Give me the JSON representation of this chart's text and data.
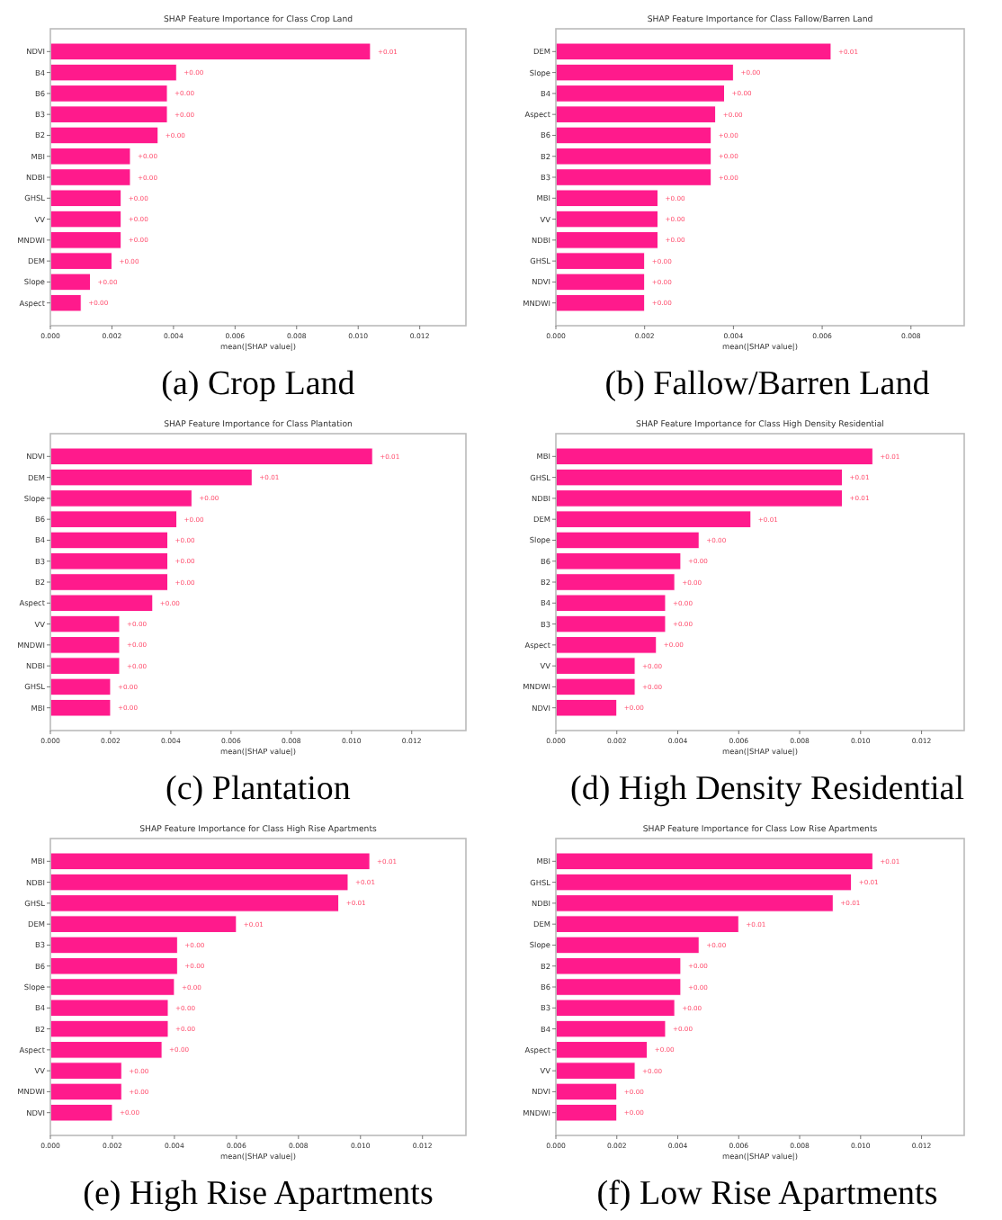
{
  "chart_data": [
    {
      "type": "bar",
      "orientation": "horizontal",
      "title": "SHAP Feature Importance for Class Crop Land",
      "xlabel": "mean(|SHAP value|)",
      "categories": [
        "NDVI",
        "B4",
        "B6",
        "B3",
        "B2",
        "MBI",
        "NDBI",
        "GHSL",
        "VV",
        "MNDWI",
        "DEM",
        "Slope",
        "Aspect"
      ],
      "values": [
        0.0104,
        0.0041,
        0.0038,
        0.0038,
        0.0035,
        0.0026,
        0.0026,
        0.0023,
        0.0023,
        0.0023,
        0.002,
        0.0013,
        0.001
      ],
      "value_labels": [
        "+0.01",
        "+0.00",
        "+0.00",
        "+0.00",
        "+0.00",
        "+0.00",
        "+0.00",
        "+0.00",
        "+0.00",
        "+0.00",
        "+0.00",
        "+0.00",
        "+0.00"
      ],
      "color": "#ff1a8c",
      "xlim": [
        0,
        0.0135
      ],
      "xticks": [
        {
          "value": 0,
          "label": "0.000"
        },
        {
          "value": 0.002,
          "label": "0.002"
        },
        {
          "value": 0.004,
          "label": "0.004"
        },
        {
          "value": 0.006,
          "label": "0.006"
        },
        {
          "value": 0.008,
          "label": "0.008"
        },
        {
          "value": 0.01,
          "label": "0.010"
        },
        {
          "value": 0.012,
          "label": "0.012"
        }
      ],
      "annotations": [
        "(a) Crop Land"
      ]
    },
    {
      "type": "bar",
      "orientation": "horizontal",
      "title": "SHAP Feature Importance for Class Fallow/Barren Land",
      "xlabel": "mean(|SHAP value|)",
      "categories": [
        "DEM",
        "Slope",
        "B4",
        "Aspect",
        "B6",
        "B2",
        "B3",
        "MBI",
        "VV",
        "NDBI",
        "GHSL",
        "NDVI",
        "MNDWI"
      ],
      "values": [
        0.0062,
        0.004,
        0.0038,
        0.0036,
        0.0035,
        0.0035,
        0.0035,
        0.0023,
        0.0023,
        0.0023,
        0.002,
        0.002,
        0.002
      ],
      "value_labels": [
        "+0.01",
        "+0.00",
        "+0.00",
        "+0.00",
        "+0.00",
        "+0.00",
        "+0.00",
        "+0.00",
        "+0.00",
        "+0.00",
        "+0.00",
        "+0.00",
        "+0.00"
      ],
      "color": "#ff1a8c",
      "xlim": [
        0,
        0.0092
      ],
      "xticks": [
        {
          "value": 0,
          "label": "0.000"
        },
        {
          "value": 0.002,
          "label": "0.002"
        },
        {
          "value": 0.004,
          "label": "0.004"
        },
        {
          "value": 0.006,
          "label": "0.006"
        },
        {
          "value": 0.008,
          "label": "0.008"
        }
      ],
      "annotations": [
        "(b) Fallow/Barren Land"
      ]
    },
    {
      "type": "bar",
      "orientation": "horizontal",
      "title": "SHAP Feature Importance for Class Plantation",
      "xlabel": "mean(|SHAP value|)",
      "categories": [
        "NDVI",
        "DEM",
        "Slope",
        "B6",
        "B4",
        "B3",
        "B2",
        "Aspect",
        "VV",
        "MNDWI",
        "NDBI",
        "GHSL",
        "MBI"
      ],
      "values": [
        0.0107,
        0.0067,
        0.0047,
        0.0042,
        0.0039,
        0.0039,
        0.0039,
        0.0034,
        0.0023,
        0.0023,
        0.0023,
        0.002,
        0.002
      ],
      "value_labels": [
        "+0.01",
        "+0.01",
        "+0.00",
        "+0.00",
        "+0.00",
        "+0.00",
        "+0.00",
        "+0.00",
        "+0.00",
        "+0.00",
        "+0.00",
        "+0.00",
        "+0.00"
      ],
      "color": "#ff1a8c",
      "xlim": [
        0,
        0.0138
      ],
      "xticks": [
        {
          "value": 0,
          "label": "0.000"
        },
        {
          "value": 0.002,
          "label": "0.002"
        },
        {
          "value": 0.004,
          "label": "0.004"
        },
        {
          "value": 0.006,
          "label": "0.006"
        },
        {
          "value": 0.008,
          "label": "0.008"
        },
        {
          "value": 0.01,
          "label": "0.010"
        },
        {
          "value": 0.012,
          "label": "0.012"
        }
      ],
      "annotations": [
        "(c) Plantation"
      ]
    },
    {
      "type": "bar",
      "orientation": "horizontal",
      "title": "SHAP Feature Importance for Class High Density Residential",
      "xlabel": "mean(|SHAP value|)",
      "categories": [
        "MBI",
        "GHSL",
        "NDBI",
        "DEM",
        "Slope",
        "B6",
        "B2",
        "B4",
        "B3",
        "Aspect",
        "VV",
        "MNDWI",
        "NDVI"
      ],
      "values": [
        0.0104,
        0.0094,
        0.0094,
        0.0064,
        0.0047,
        0.0041,
        0.0039,
        0.0036,
        0.0036,
        0.0033,
        0.0026,
        0.0026,
        0.002
      ],
      "value_labels": [
        "+0.01",
        "+0.01",
        "+0.01",
        "+0.01",
        "+0.00",
        "+0.00",
        "+0.00",
        "+0.00",
        "+0.00",
        "+0.00",
        "+0.00",
        "+0.00",
        "+0.00"
      ],
      "color": "#ff1a8c",
      "xlim": [
        0,
        0.0134
      ],
      "xticks": [
        {
          "value": 0,
          "label": "0.000"
        },
        {
          "value": 0.002,
          "label": "0.002"
        },
        {
          "value": 0.004,
          "label": "0.004"
        },
        {
          "value": 0.006,
          "label": "0.006"
        },
        {
          "value": 0.008,
          "label": "0.008"
        },
        {
          "value": 0.01,
          "label": "0.010"
        },
        {
          "value": 0.012,
          "label": "0.012"
        }
      ],
      "annotations": [
        "(d) High Density Residential"
      ]
    },
    {
      "type": "bar",
      "orientation": "horizontal",
      "title": "SHAP Feature Importance for Class High Rise Apartments",
      "xlabel": "mean(|SHAP value|)",
      "categories": [
        "MBI",
        "NDBI",
        "GHSL",
        "DEM",
        "B3",
        "B6",
        "Slope",
        "B4",
        "B2",
        "Aspect",
        "VV",
        "MNDWI",
        "NDVI"
      ],
      "values": [
        0.0103,
        0.0096,
        0.0093,
        0.006,
        0.0041,
        0.0041,
        0.004,
        0.0038,
        0.0038,
        0.0036,
        0.0023,
        0.0023,
        0.002
      ],
      "value_labels": [
        "+0.01",
        "+0.01",
        "+0.01",
        "+0.01",
        "+0.00",
        "+0.00",
        "+0.00",
        "+0.00",
        "+0.00",
        "+0.00",
        "+0.00",
        "+0.00",
        "+0.00"
      ],
      "color": "#ff1a8c",
      "xlim": [
        0,
        0.0134
      ],
      "xticks": [
        {
          "value": 0,
          "label": "0.000"
        },
        {
          "value": 0.002,
          "label": "0.002"
        },
        {
          "value": 0.004,
          "label": "0.004"
        },
        {
          "value": 0.006,
          "label": "0.006"
        },
        {
          "value": 0.008,
          "label": "0.008"
        },
        {
          "value": 0.01,
          "label": "0.010"
        },
        {
          "value": 0.012,
          "label": "0.012"
        }
      ],
      "annotations": [
        "(e) High Rise Apartments"
      ]
    },
    {
      "type": "bar",
      "orientation": "horizontal",
      "title": "SHAP Feature Importance for Class Low Rise Apartments",
      "xlabel": "mean(|SHAP value|)",
      "categories": [
        "MBI",
        "GHSL",
        "NDBI",
        "DEM",
        "Slope",
        "B2",
        "B6",
        "B3",
        "B4",
        "Aspect",
        "VV",
        "NDVI",
        "MNDWI"
      ],
      "values": [
        0.0104,
        0.0097,
        0.0091,
        0.006,
        0.0047,
        0.0041,
        0.0041,
        0.0039,
        0.0036,
        0.003,
        0.0026,
        0.002,
        0.002
      ],
      "value_labels": [
        "+0.01",
        "+0.01",
        "+0.01",
        "+0.01",
        "+0.00",
        "+0.00",
        "+0.00",
        "+0.00",
        "+0.00",
        "+0.00",
        "+0.00",
        "+0.00",
        "+0.00"
      ],
      "color": "#ff1a8c",
      "xlim": [
        0,
        0.0134
      ],
      "xticks": [
        {
          "value": 0,
          "label": "0.000"
        },
        {
          "value": 0.002,
          "label": "0.002"
        },
        {
          "value": 0.004,
          "label": "0.004"
        },
        {
          "value": 0.006,
          "label": "0.006"
        },
        {
          "value": 0.008,
          "label": "0.008"
        },
        {
          "value": 0.01,
          "label": "0.010"
        },
        {
          "value": 0.012,
          "label": "0.012"
        }
      ],
      "annotations": [
        "(f) Low Rise Apartments"
      ]
    }
  ]
}
